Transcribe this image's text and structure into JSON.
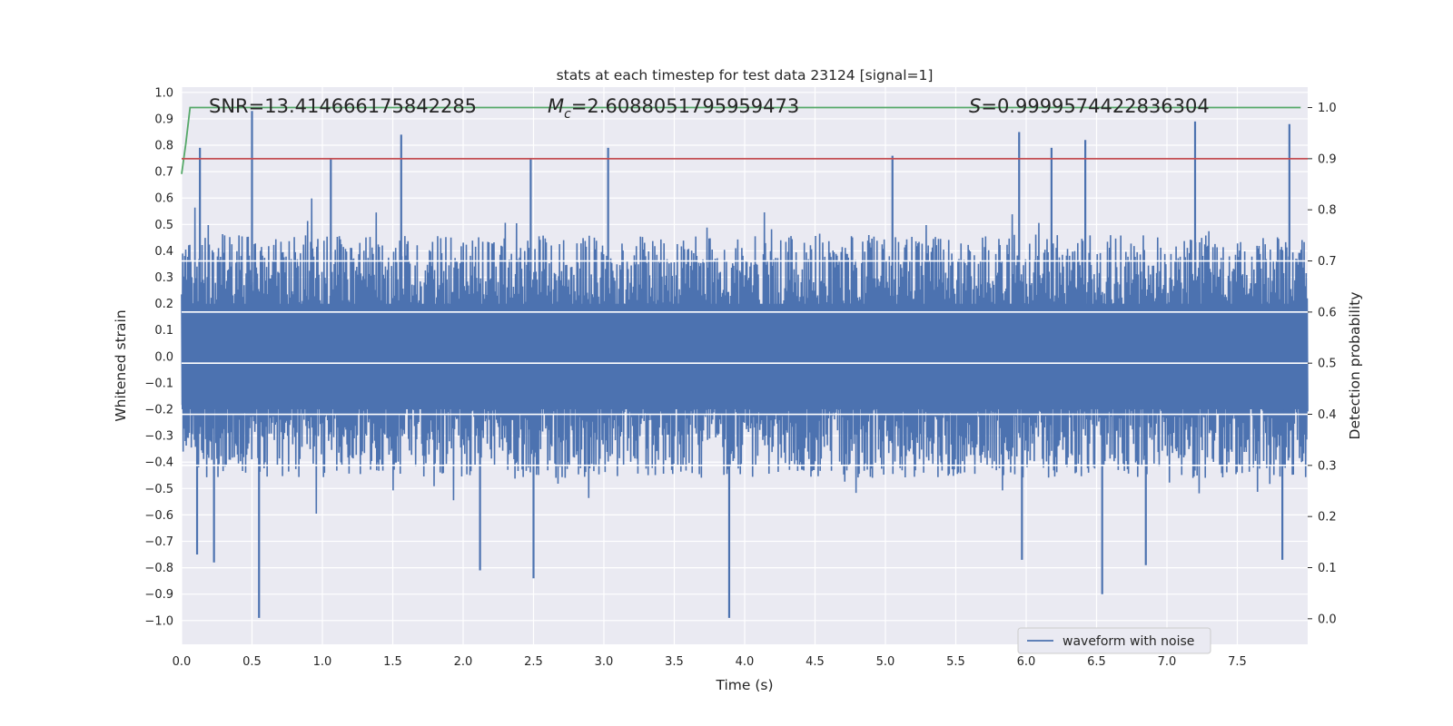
{
  "chart_data": {
    "type": "line",
    "title": "stats at each timestep for test data 23124 [signal=1]",
    "xlabel": "Time (s)",
    "ylabel_left": "Whitened strain",
    "ylabel_right": "Detection probability",
    "xlim": [
      0.0,
      8.0
    ],
    "ylim_left": [
      -1.09,
      1.02
    ],
    "ylim_right": [
      -0.05,
      1.04
    ],
    "x_ticks": [
      "0.0",
      "0.5",
      "1.0",
      "1.5",
      "2.0",
      "2.5",
      "3.0",
      "3.5",
      "4.0",
      "4.5",
      "5.0",
      "5.5",
      "6.0",
      "6.5",
      "7.0",
      "7.5"
    ],
    "y_left_ticks": [
      "1.0",
      "0.9",
      "0.8",
      "0.7",
      "0.6",
      "0.5",
      "0.4",
      "0.3",
      "0.2",
      "0.1",
      "0.0",
      "−0.1",
      "−0.2",
      "−0.3",
      "−0.4",
      "−0.5",
      "−0.6",
      "−0.7",
      "−0.8",
      "−0.9",
      "−1.0"
    ],
    "y_right_ticks": [
      "1.0",
      "0.9",
      "0.8",
      "0.7",
      "0.6",
      "0.5",
      "0.4",
      "0.3",
      "0.2",
      "0.1",
      "0.0"
    ],
    "grid": true,
    "legend_position": "lower-right",
    "annotations": {
      "snr": "SNR=13.414666175842285",
      "mc_symbol": "M",
      "mc_sub": "c",
      "mc_value": "=2.6088051795959473",
      "s_symbol": "S",
      "s_value": "=0.9999574422836304"
    },
    "series": [
      {
        "name": "waveform with noise",
        "axis": "left",
        "color": "#4c72b0",
        "kind": "noise-waveform",
        "x_range": [
          0.0,
          8.0
        ],
        "envelope": {
          "upper_typical": 0.45,
          "lower_typical": -0.45
        },
        "peaks": [
          {
            "x": 0.13,
            "y": 0.79
          },
          {
            "x": 0.5,
            "y": 0.93
          },
          {
            "x": 1.56,
            "y": 0.84
          },
          {
            "x": 1.06,
            "y": 0.75
          },
          {
            "x": 3.03,
            "y": 0.79
          },
          {
            "x": 5.05,
            "y": 0.76
          },
          {
            "x": 5.95,
            "y": 0.85
          },
          {
            "x": 6.18,
            "y": 0.79
          },
          {
            "x": 6.42,
            "y": 0.82
          },
          {
            "x": 7.2,
            "y": 0.89
          },
          {
            "x": 7.87,
            "y": 0.88
          },
          {
            "x": 2.48,
            "y": 0.75
          }
        ],
        "troughs": [
          {
            "x": 0.55,
            "y": -0.99
          },
          {
            "x": 3.89,
            "y": -0.99
          },
          {
            "x": 6.54,
            "y": -0.9
          },
          {
            "x": 2.5,
            "y": -0.84
          },
          {
            "x": 2.12,
            "y": -0.81
          },
          {
            "x": 0.23,
            "y": -0.78
          },
          {
            "x": 0.11,
            "y": -0.75
          },
          {
            "x": 5.97,
            "y": -0.77
          },
          {
            "x": 6.85,
            "y": -0.79
          },
          {
            "x": 7.82,
            "y": -0.77
          }
        ]
      },
      {
        "name": "",
        "axis": "right",
        "color": "#55a868",
        "x": [
          0.0,
          0.03,
          0.06,
          7.95
        ],
        "y": [
          0.87,
          0.93,
          1.0,
          1.0
        ]
      },
      {
        "name": "",
        "axis": "right",
        "color": "#c44e52",
        "x": [
          0.0,
          8.0
        ],
        "y": [
          0.9,
          0.9
        ]
      }
    ]
  }
}
